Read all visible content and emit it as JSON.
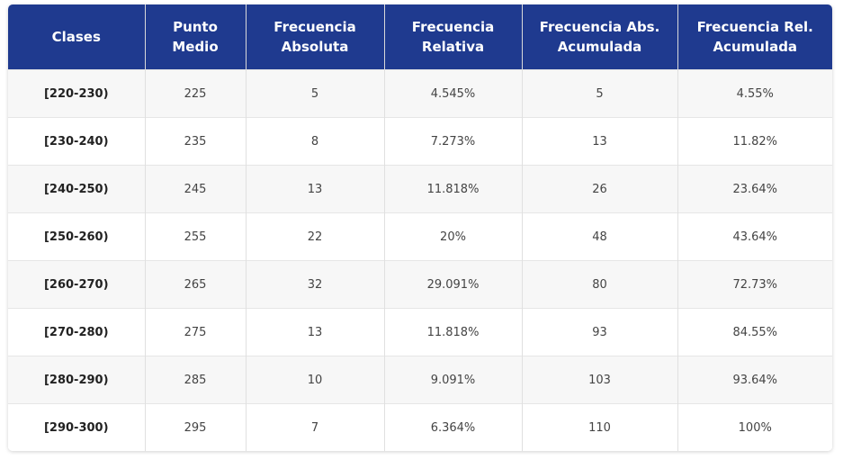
{
  "table": {
    "headers": [
      [
        "Clases"
      ],
      [
        "Punto",
        "Medio"
      ],
      [
        "Frecuencia",
        "Absoluta"
      ],
      [
        "Frecuencia",
        "Relativa"
      ],
      [
        "Frecuencia Abs.",
        "Acumulada"
      ],
      [
        "Frecuencia Rel.",
        "Acumulada"
      ]
    ],
    "rows": [
      [
        "[220-230)",
        "225",
        "5",
        "4.545%",
        "5",
        "4.55%"
      ],
      [
        "[230-240)",
        "235",
        "8",
        "7.273%",
        "13",
        "11.82%"
      ],
      [
        "[240-250)",
        "245",
        "13",
        "11.818%",
        "26",
        "23.64%"
      ],
      [
        "[250-260)",
        "255",
        "22",
        "20%",
        "48",
        "43.64%"
      ],
      [
        "[260-270)",
        "265",
        "32",
        "29.091%",
        "80",
        "72.73%"
      ],
      [
        "[270-280)",
        "275",
        "13",
        "11.818%",
        "93",
        "84.55%"
      ],
      [
        "[280-290)",
        "285",
        "10",
        "9.091%",
        "103",
        "93.64%"
      ],
      [
        "[290-300)",
        "295",
        "7",
        "6.364%",
        "110",
        "100%"
      ]
    ]
  },
  "colors": {
    "header_bg": "#1f3a8f",
    "header_text": "#ffffff",
    "row_alt_bg": "#f7f7f7"
  }
}
